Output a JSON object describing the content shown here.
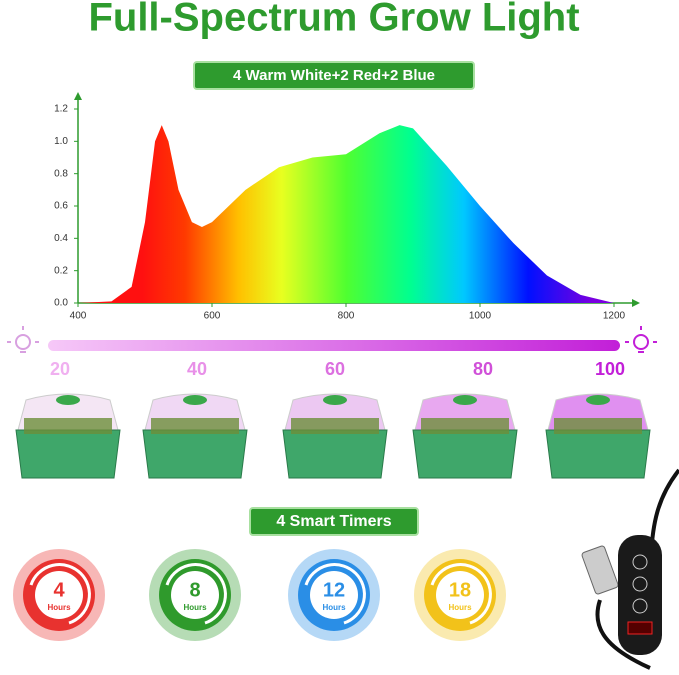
{
  "title": "Full-Spectrum Grow Light",
  "badge": "4 Warm White+2 Red+2 Blue",
  "chart_data": {
    "type": "area",
    "x": [
      400,
      450,
      480,
      500,
      515,
      525,
      535,
      550,
      570,
      585,
      600,
      650,
      700,
      750,
      800,
      850,
      880,
      900,
      950,
      1000,
      1050,
      1100,
      1150,
      1200
    ],
    "values": [
      0,
      0.01,
      0.1,
      0.5,
      1.0,
      1.1,
      1.0,
      0.7,
      0.5,
      0.47,
      0.5,
      0.7,
      0.84,
      0.9,
      0.92,
      1.05,
      1.1,
      1.08,
      0.85,
      0.6,
      0.37,
      0.17,
      0.05,
      0
    ],
    "xlim": [
      400,
      1200
    ],
    "ylim": [
      0,
      1.2
    ],
    "xticks": [
      400,
      600,
      800,
      1000,
      1200
    ],
    "yticks": [
      {
        "value": 0,
        "label": "0.0"
      },
      0.2,
      0.4,
      0.6,
      0.8,
      {
        "value": 1,
        "label": "1.0"
      },
      1.2
    ]
  },
  "brightness_levels": [
    20,
    40,
    60,
    80,
    100
  ],
  "timers_title": "4 Smart Timers",
  "timers": [
    {
      "hours": 4,
      "label": "Hours",
      "color": "#e8322f"
    },
    {
      "hours": 8,
      "label": "Hours",
      "color": "#2f9a2c"
    },
    {
      "hours": 12,
      "label": "Hours",
      "color": "#2a8ee6"
    },
    {
      "hours": 18,
      "label": "Hours",
      "color": "#f2c21a"
    }
  ]
}
